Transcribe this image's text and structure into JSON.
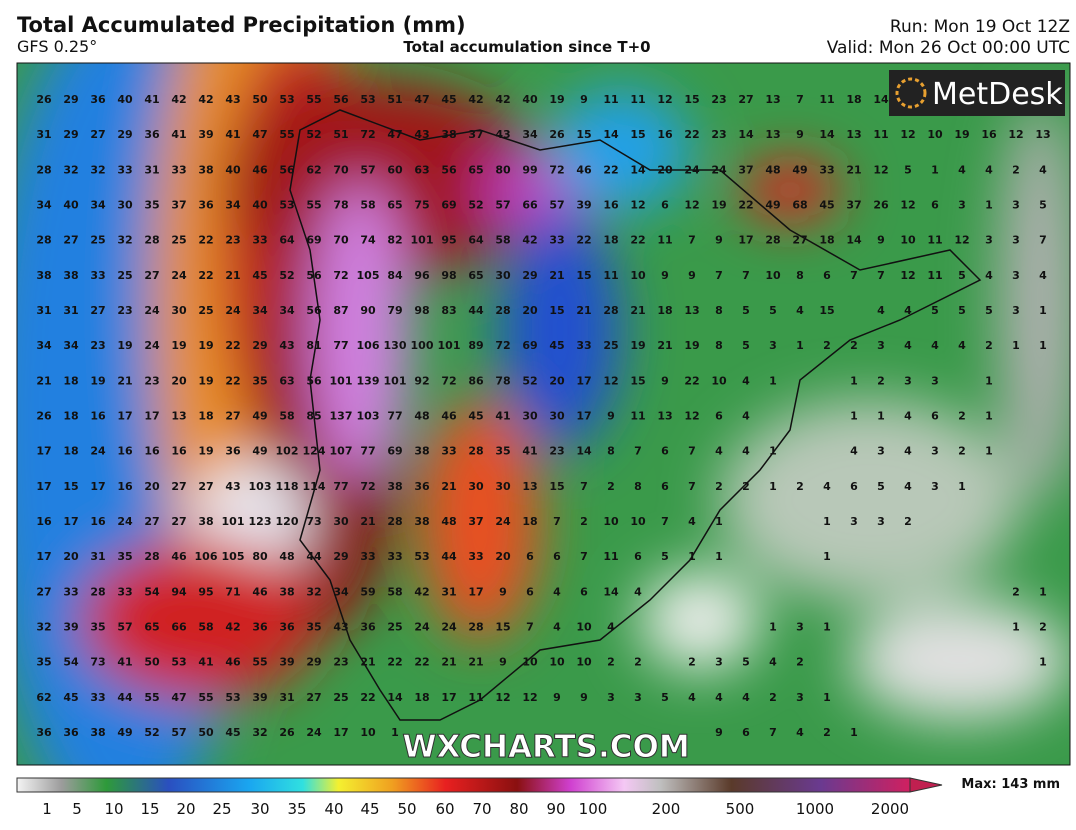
{
  "header": {
    "title": "Total Accumulated Precipitation (mm)",
    "model": "GFS 0.25°",
    "subtitle": "Total accumulation since T+0",
    "run": "Run: Mon 19 Oct 12Z",
    "valid": "Valid: Mon 26 Oct 00:00 UTC"
  },
  "logo": "MetDesk",
  "watermark": "WXCHARTS.COM",
  "grid": {
    "rows": [
      [
        26,
        29,
        36,
        40,
        41,
        42,
        42,
        43,
        50,
        53,
        55,
        56,
        53,
        51,
        47,
        45,
        42,
        42,
        40,
        19,
        9,
        11,
        11,
        12,
        15,
        23,
        27,
        13,
        7,
        11,
        18,
        14,
        null,
        null,
        null,
        null,
        null,
        null
      ],
      [
        31,
        29,
        27,
        29,
        36,
        41,
        39,
        41,
        47,
        55,
        52,
        51,
        72,
        47,
        43,
        38,
        37,
        43,
        34,
        26,
        15,
        14,
        15,
        16,
        22,
        23,
        14,
        13,
        9,
        14,
        13,
        11,
        12,
        10,
        19,
        16,
        12,
        13
      ],
      [
        28,
        32,
        32,
        33,
        31,
        33,
        38,
        40,
        46,
        56,
        62,
        70,
        57,
        60,
        63,
        56,
        65,
        80,
        99,
        72,
        46,
        22,
        14,
        20,
        24,
        24,
        37,
        48,
        49,
        33,
        21,
        12,
        5,
        1,
        4,
        4,
        2,
        4
      ],
      [
        34,
        40,
        34,
        30,
        35,
        37,
        36,
        34,
        40,
        53,
        55,
        78,
        58,
        65,
        75,
        69,
        52,
        57,
        66,
        57,
        39,
        16,
        12,
        6,
        12,
        19,
        22,
        49,
        68,
        45,
        37,
        26,
        12,
        6,
        3,
        1,
        3,
        5
      ],
      [
        28,
        27,
        25,
        32,
        28,
        25,
        22,
        23,
        33,
        64,
        69,
        70,
        74,
        82,
        101,
        95,
        64,
        58,
        42,
        33,
        22,
        18,
        22,
        11,
        7,
        9,
        17,
        28,
        27,
        18,
        14,
        9,
        10,
        11,
        12,
        3,
        3,
        7
      ],
      [
        38,
        38,
        33,
        25,
        27,
        24,
        22,
        21,
        45,
        52,
        56,
        72,
        105,
        84,
        96,
        98,
        65,
        30,
        29,
        21,
        15,
        11,
        10,
        9,
        9,
        7,
        7,
        10,
        8,
        6,
        7,
        7,
        12,
        11,
        5,
        4,
        3,
        4
      ],
      [
        31,
        31,
        27,
        23,
        24,
        30,
        25,
        24,
        34,
        34,
        56,
        87,
        90,
        79,
        98,
        83,
        44,
        28,
        20,
        15,
        21,
        28,
        21,
        18,
        13,
        8,
        5,
        5,
        4,
        15,
        null,
        4,
        4,
        5,
        5,
        5,
        3,
        1
      ],
      [
        34,
        34,
        23,
        19,
        24,
        19,
        19,
        22,
        29,
        43,
        81,
        77,
        106,
        130,
        100,
        101,
        89,
        72,
        69,
        45,
        33,
        25,
        19,
        21,
        19,
        8,
        5,
        3,
        1,
        2,
        2,
        3,
        4,
        4,
        4,
        2,
        1,
        1
      ],
      [
        21,
        18,
        19,
        21,
        23,
        20,
        19,
        22,
        35,
        63,
        56,
        101,
        139,
        101,
        92,
        72,
        86,
        78,
        52,
        20,
        17,
        12,
        15,
        9,
        22,
        10,
        4,
        1,
        null,
        null,
        1,
        2,
        3,
        3,
        null,
        1,
        null,
        null
      ],
      [
        26,
        18,
        16,
        17,
        17,
        13,
        18,
        27,
        49,
        58,
        85,
        137,
        103,
        77,
        48,
        46,
        45,
        41,
        30,
        30,
        17,
        9,
        11,
        13,
        12,
        6,
        4,
        null,
        null,
        null,
        1,
        1,
        4,
        6,
        2,
        1,
        null,
        null
      ],
      [
        17,
        18,
        24,
        16,
        16,
        16,
        19,
        36,
        49,
        102,
        124,
        107,
        77,
        69,
        38,
        33,
        28,
        35,
        41,
        23,
        14,
        8,
        7,
        6,
        7,
        4,
        4,
        1,
        null,
        null,
        4,
        3,
        4,
        3,
        2,
        1,
        null,
        null
      ],
      [
        17,
        15,
        17,
        16,
        20,
        27,
        27,
        43,
        103,
        118,
        114,
        77,
        72,
        38,
        36,
        21,
        30,
        30,
        13,
        15,
        7,
        2,
        8,
        6,
        7,
        2,
        2,
        1,
        2,
        4,
        6,
        5,
        4,
        3,
        1,
        null,
        null,
        null
      ],
      [
        16,
        17,
        16,
        24,
        27,
        27,
        38,
        101,
        123,
        120,
        73,
        30,
        21,
        28,
        38,
        48,
        37,
        24,
        18,
        7,
        2,
        10,
        10,
        7,
        4,
        1,
        null,
        null,
        null,
        1,
        3,
        3,
        2,
        null,
        null,
        null,
        null,
        null
      ],
      [
        17,
        20,
        31,
        35,
        28,
        46,
        106,
        105,
        80,
        48,
        44,
        29,
        33,
        33,
        53,
        44,
        33,
        20,
        6,
        6,
        7,
        11,
        6,
        5,
        1,
        1,
        null,
        null,
        null,
        1,
        null,
        null,
        null,
        null,
        null,
        null,
        null,
        null
      ],
      [
        27,
        33,
        28,
        33,
        54,
        94,
        95,
        71,
        46,
        38,
        32,
        34,
        59,
        58,
        42,
        31,
        17,
        9,
        6,
        4,
        6,
        14,
        4,
        null,
        null,
        null,
        null,
        null,
        null,
        null,
        null,
        null,
        null,
        null,
        null,
        null,
        2,
        1
      ],
      [
        32,
        39,
        35,
        57,
        65,
        66,
        58,
        42,
        36,
        36,
        35,
        43,
        36,
        25,
        24,
        24,
        28,
        15,
        7,
        4,
        10,
        4,
        null,
        null,
        null,
        null,
        null,
        1,
        3,
        1,
        null,
        null,
        null,
        null,
        null,
        null,
        1,
        2
      ],
      [
        35,
        54,
        73,
        41,
        50,
        53,
        41,
        46,
        55,
        39,
        29,
        23,
        21,
        22,
        22,
        21,
        21,
        9,
        10,
        10,
        10,
        2,
        2,
        null,
        2,
        3,
        5,
        4,
        2,
        null,
        null,
        null,
        null,
        null,
        null,
        null,
        null,
        1
      ],
      [
        62,
        45,
        33,
        44,
        55,
        47,
        55,
        53,
        39,
        31,
        27,
        25,
        22,
        14,
        18,
        17,
        11,
        12,
        12,
        9,
        9,
        3,
        3,
        5,
        4,
        4,
        4,
        2,
        3,
        1,
        null,
        null,
        null,
        null,
        null,
        null,
        null,
        null
      ],
      [
        36,
        36,
        38,
        49,
        52,
        57,
        50,
        45,
        32,
        26,
        24,
        17,
        10,
        1,
        null,
        null,
        null,
        null,
        null,
        null,
        null,
        null,
        null,
        null,
        null,
        9,
        6,
        7,
        4,
        2,
        1,
        null,
        null,
        null,
        null,
        null,
        null,
        null
      ]
    ]
  },
  "colorbar": {
    "labels": [
      "1",
      "5",
      "10",
      "15",
      "20",
      "25",
      "30",
      "35",
      "40",
      "45",
      "50",
      "60",
      "70",
      "80",
      "90",
      "100",
      "200",
      "500",
      "1000",
      "2000"
    ],
    "max": "Max: 143 mm"
  }
}
